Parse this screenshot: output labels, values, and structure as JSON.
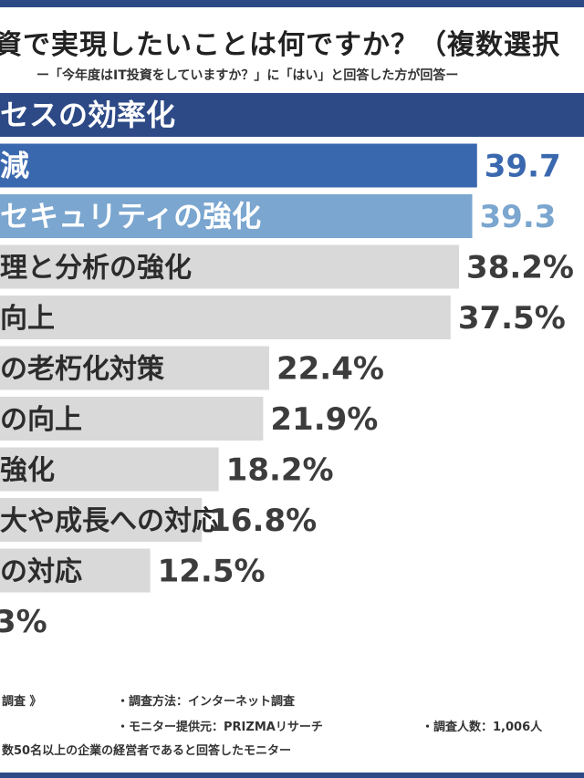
{
  "title": "資で実現したいことは何ですか？（複数選択",
  "subtitle": "ー「今年度はIT投資をしていますか？」に「はい」と回答した方が回答ー",
  "chart_data": {
    "type": "bar",
    "orientation": "horizontal",
    "categories": [
      "セスの効率化",
      "減",
      "セキュリティの強化",
      "理と分析の強化",
      "向上",
      "の老朽化対策",
      "の向上",
      "強化",
      "大や成長への対応",
      "の対応",
      ""
    ],
    "values": [
      null,
      39.7,
      39.3,
      38.2,
      37.5,
      22.4,
      21.9,
      18.2,
      16.8,
      12.5,
      null
    ],
    "value_labels": [
      "",
      "39.7",
      "39.3",
      "38.2%",
      "37.5%",
      "22.4%",
      "21.9%",
      "18.2%",
      "16.8%",
      "12.5%",
      "3%"
    ],
    "xlim": [
      0,
      48.6
    ],
    "colors": {
      "top": "#2d4a86",
      "second": "#3a68ae",
      "third": "#7aa6cf",
      "rest": "#d9d9d9",
      "label_second": "#3a68ae",
      "label_third": "#7aa6cf",
      "label_rest": "#3c3c3c"
    }
  },
  "footer": {
    "left_partial": "調査 》",
    "method_label": "調査方法：インターネット調査",
    "provider_label": "モニター提供元：PRIZMAリサーチ",
    "count_label": "調査人数：1,006人",
    "target_partial": "数50名以上の企業の経営者であると回答したモニター"
  }
}
